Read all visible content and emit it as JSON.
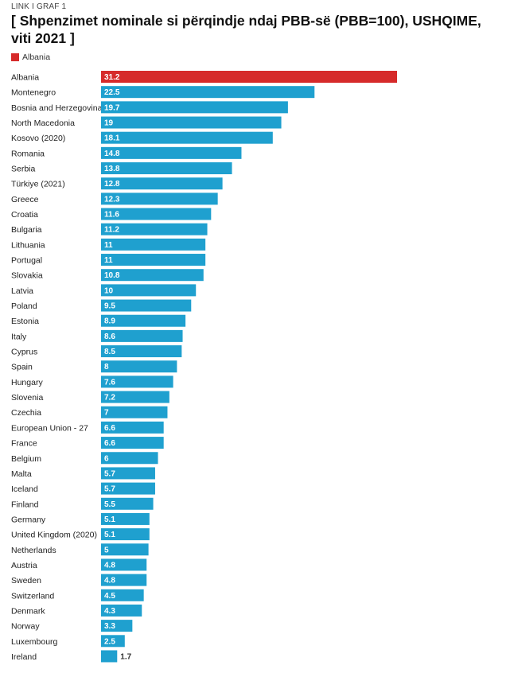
{
  "kicker": "LINK I GRAF 1",
  "chart_data": {
    "type": "bar",
    "orientation": "horizontal",
    "title": "[ Shpenzimet nominale si përqindje ndaj PBB-së (PBB=100), USHQIME, viti 2021 ]",
    "legend": [
      {
        "name": "Albania",
        "color": "#d62a2a"
      }
    ],
    "legend_position": "top-left",
    "grid": false,
    "xlim": [
      0,
      31.2
    ],
    "highlight_color": "#d62a2a",
    "bar_color": "#1fa0cf",
    "categories": [
      "Albania",
      "Montenegro",
      "Bosnia and Herzegovina",
      "North Macedonia",
      "Kosovo (2020)",
      "Romania",
      "Serbia",
      "Türkiye (2021)",
      "Greece",
      "Croatia",
      "Bulgaria",
      "Lithuania",
      "Portugal",
      "Slovakia",
      "Latvia",
      "Poland",
      "Estonia",
      "Italy",
      "Cyprus",
      "Spain",
      "Hungary",
      "Slovenia",
      "Czechia",
      "European Union - 27",
      "France",
      "Belgium",
      "Malta",
      "Iceland",
      "Finland",
      "Germany",
      "United Kingdom (2020)",
      "Netherlands",
      "Austria",
      "Sweden",
      "Switzerland",
      "Denmark",
      "Norway",
      "Luxembourg",
      "Ireland"
    ],
    "values": [
      31.2,
      22.5,
      19.7,
      19,
      18.1,
      14.8,
      13.8,
      12.8,
      12.3,
      11.6,
      11.2,
      11,
      11,
      10.8,
      10,
      9.5,
      8.9,
      8.6,
      8.5,
      8,
      7.6,
      7.2,
      7,
      6.6,
      6.6,
      6,
      5.7,
      5.7,
      5.5,
      5.1,
      5.1,
      5,
      4.8,
      4.8,
      4.5,
      4.3,
      3.3,
      2.5,
      1.7
    ],
    "highlight": [
      "Albania"
    ]
  }
}
